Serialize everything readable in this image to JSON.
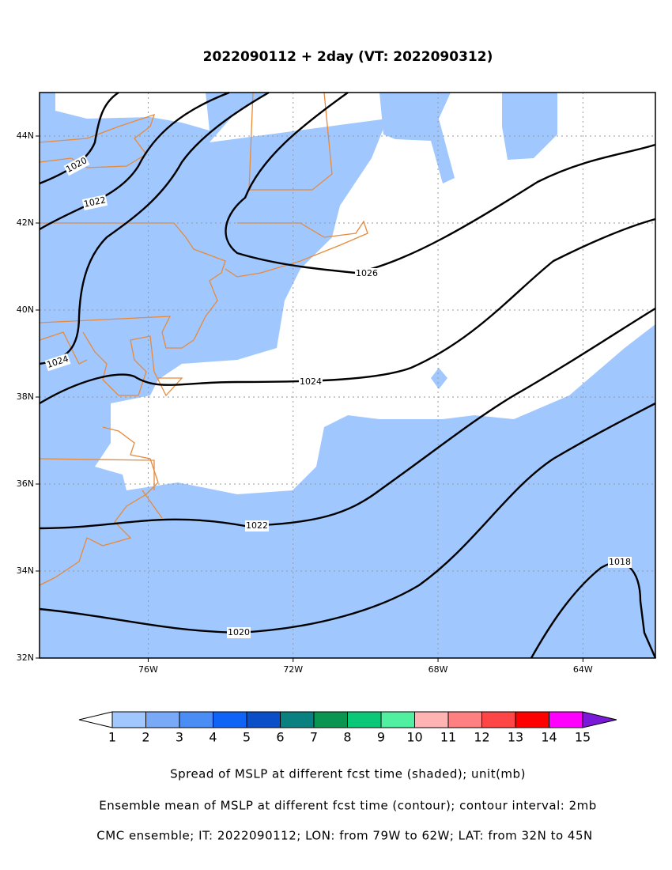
{
  "title": "2022090112 + 2day (VT: 2022090312)",
  "map": {
    "lon_ticks": [
      {
        "value": -76,
        "label": "76W"
      },
      {
        "value": -72,
        "label": "72W"
      },
      {
        "value": -68,
        "label": "68W"
      },
      {
        "value": -64,
        "label": "64W"
      }
    ],
    "lat_ticks": [
      {
        "value": 32,
        "label": "32N"
      },
      {
        "value": 34,
        "label": "34N"
      },
      {
        "value": 36,
        "label": "36N"
      },
      {
        "value": 38,
        "label": "38N"
      },
      {
        "value": 40,
        "label": "40N"
      },
      {
        "value": 42,
        "label": "42N"
      },
      {
        "value": 44,
        "label": "44N"
      }
    ],
    "contour_labels": [
      "1020",
      "1022",
      "1024",
      "1026",
      "1024",
      "1022",
      "1020",
      "1018"
    ]
  },
  "colorbar": {
    "labels": [
      "1",
      "2",
      "3",
      "4",
      "5",
      "6",
      "7",
      "8",
      "9",
      "10",
      "11",
      "12",
      "13",
      "14",
      "15"
    ],
    "colors": [
      "#a0c8ff",
      "#78aaf8",
      "#4a8ef5",
      "#0f64f5",
      "#0a4ec8",
      "#0a8080",
      "#0a9650",
      "#0ac878",
      "#50f0a0",
      "#ffb4b4",
      "#ff8080",
      "#ff4646",
      "#ff0000",
      "#ff00ff",
      "#7a1ad8"
    ]
  },
  "captions": [
    "Spread of MSLP at different fcst time (shaded); unit(mb)",
    "Ensemble mean of MSLP at different fcst time (contour); contour interval: 2mb",
    "CMC ensemble; IT: 2022090112; LON: from 79W to 62W; LAT: from 32N to 45N"
  ]
}
